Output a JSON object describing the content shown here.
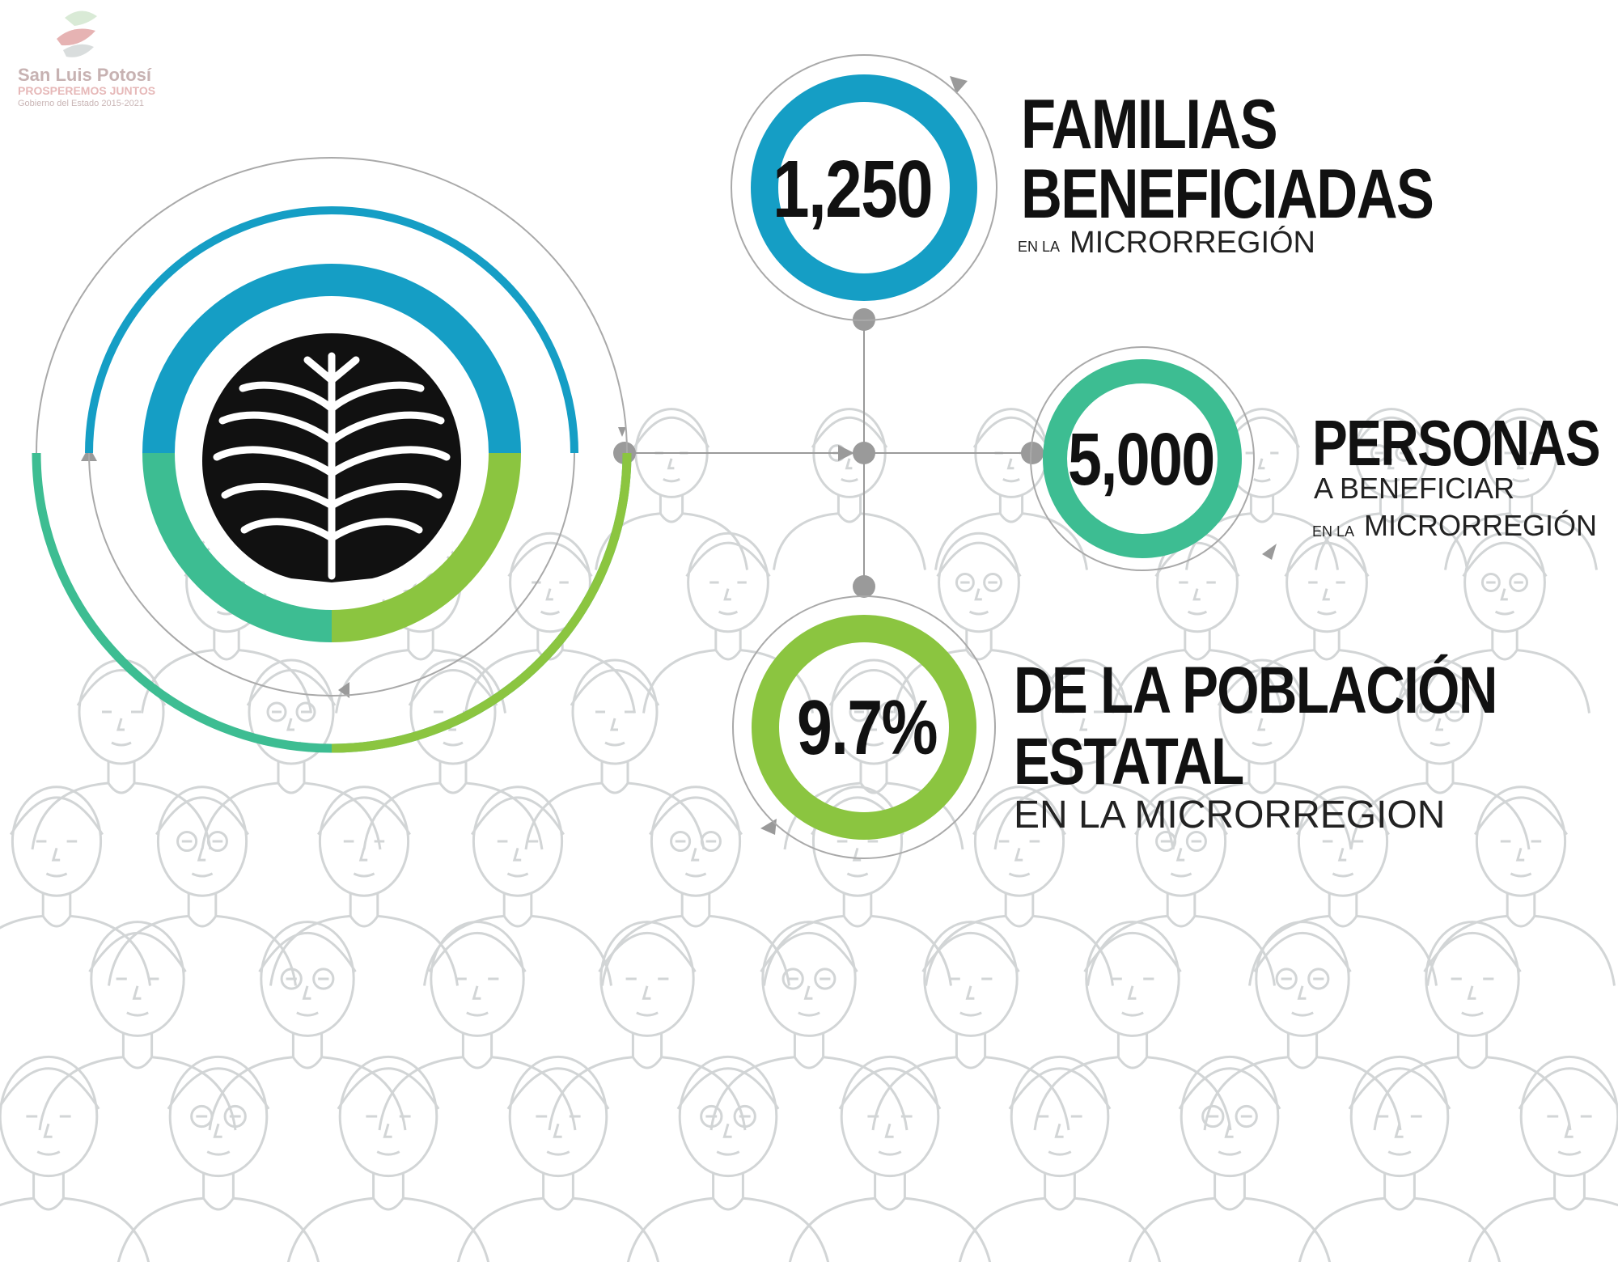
{
  "logo": {
    "name": "San Luis Potosí",
    "slogan": "PROSPEREMOS JUNTOS",
    "government": "Gobierno del Estado 2015-2021"
  },
  "stats": {
    "families": {
      "value": "1,250",
      "title_line1": "FAMILIAS",
      "title_line2": "BENEFICIADAS",
      "sub_prefix": "EN LA",
      "sub": "MICRORREGIÓN"
    },
    "persons": {
      "value": "5,000",
      "title": "PERSONAS",
      "sub_line1": "A BENEFICIAR",
      "sub_prefix": "EN LA",
      "sub": "MICRORREGIÓN"
    },
    "population": {
      "value": "9.7%",
      "title_line1": "DE LA POBLACIÓN",
      "title_line2": "ESTATAL",
      "sub": "EN LA MICRORREGION"
    }
  },
  "colors": {
    "blue": "#159ec5",
    "teal": "#3dbd92",
    "green": "#8bc540",
    "gray_line": "#9a9a9a",
    "node": "#9a9a9a",
    "crowd": "#d2d5d6"
  },
  "icons": {
    "emblem": "leaf-emblem-icon",
    "logo": "san-luis-potosi-logo-icon"
  }
}
